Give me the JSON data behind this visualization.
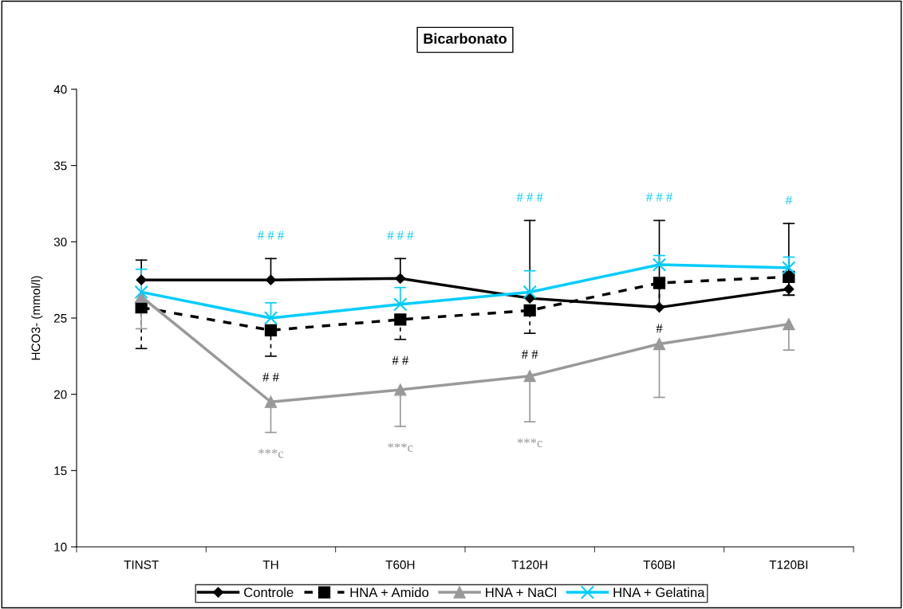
{
  "chart_data": {
    "type": "line",
    "title": "Bicarbonato",
    "ylabel": "HCO3- (mmol/l)",
    "categories": [
      "TINST",
      "TH",
      "T60H",
      "T120H",
      "T60BI",
      "T120BI"
    ],
    "ylim": [
      10,
      40
    ],
    "yticks": [
      10,
      15,
      20,
      25,
      30,
      35,
      40
    ],
    "grid": false,
    "legend": "bottom",
    "series": [
      {
        "name": "Controle",
        "color": "#000000",
        "marker": "diamond",
        "line_style": "solid",
        "values": [
          27.5,
          27.5,
          27.6,
          26.3,
          25.7,
          26.9
        ],
        "errors": [
          [
            27.5,
            28.8
          ],
          [
            27.5,
            28.9
          ],
          [
            27.6,
            28.9
          ],
          [
            26.3,
            31.4
          ],
          [
            25.7,
            31.4
          ],
          [
            26.5,
            31.2
          ]
        ]
      },
      {
        "name": "HNA + Amido",
        "color": "#000000",
        "marker": "square",
        "line_style": "dashed",
        "values": [
          25.7,
          24.2,
          24.9,
          25.5,
          27.3,
          27.7
        ],
        "errors": [
          [
            23.0,
            25.7
          ],
          [
            22.5,
            24.2
          ],
          [
            23.6,
            24.9
          ],
          [
            24.0,
            25.5
          ],
          [
            25.8,
            27.3
          ],
          [
            26.5,
            27.7
          ]
        ]
      },
      {
        "name": "HNA + NaCl",
        "color": "#999999",
        "marker": "triangle",
        "line_style": "solid",
        "values": [
          26.4,
          19.5,
          20.3,
          21.2,
          23.3,
          24.6
        ],
        "errors": [
          [
            24.3,
            26.4
          ],
          [
            17.5,
            19.5
          ],
          [
            17.9,
            20.3
          ],
          [
            18.2,
            21.2
          ],
          [
            19.8,
            23.3
          ],
          [
            22.9,
            24.6
          ]
        ]
      },
      {
        "name": "HNA + Gelatina",
        "color": "#00ccff",
        "marker": "cross",
        "line_style": "solid",
        "values": [
          26.7,
          25.0,
          25.9,
          26.7,
          28.5,
          28.3
        ],
        "errors": [
          [
            26.7,
            28.2
          ],
          [
            25.0,
            26.0
          ],
          [
            25.9,
            27.0
          ],
          [
            26.7,
            28.1
          ],
          [
            28.5,
            29.1
          ],
          [
            28.3,
            29.0
          ]
        ]
      }
    ],
    "annotations": [
      {
        "text": "# # #",
        "x": "TH",
        "y": 28.9
      },
      {
        "text": "# # #",
        "x": "T60H",
        "y": 28.9
      },
      {
        "text": "# # #",
        "x": "T120H",
        "y": 31.4
      },
      {
        "text": "# # #",
        "x": "T60BI",
        "y": 31.4
      },
      {
        "text": "#",
        "x": "T120BI",
        "y": 31.2
      },
      {
        "text": "# #",
        "x": "TH",
        "y": 22.5
      },
      {
        "text": "# #",
        "x": "T60H",
        "y": 23.6
      },
      {
        "text": "# #",
        "x": "T120H",
        "y": 24.0
      },
      {
        "text": "#",
        "x": "T60BI",
        "y": 25.7
      },
      {
        "text": "***c",
        "x": "TH",
        "y": 17.5
      },
      {
        "text": "***c",
        "x": "T60H",
        "y": 17.9
      },
      {
        "text": "***c",
        "x": "T120H",
        "y": 18.2
      }
    ]
  }
}
